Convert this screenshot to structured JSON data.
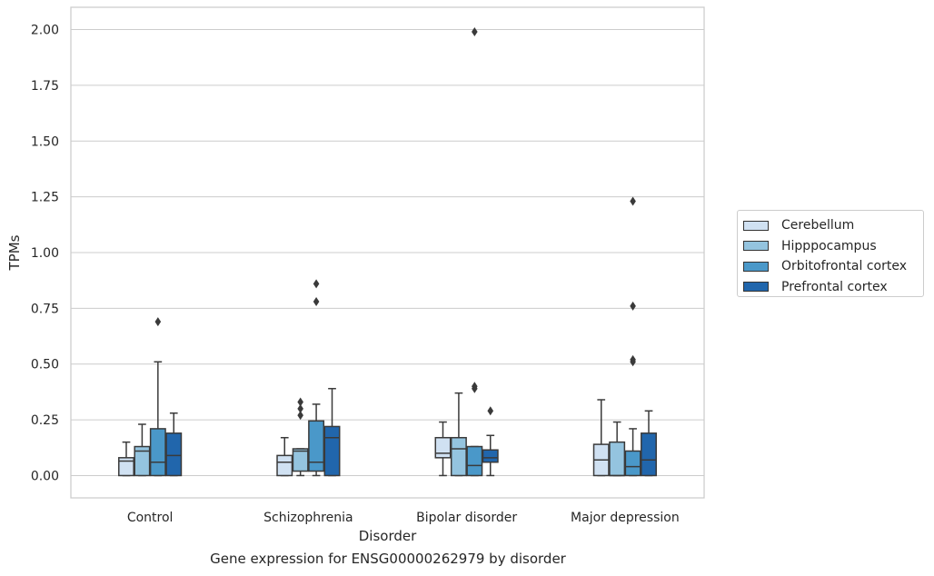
{
  "chart_data": {
    "type": "box",
    "xlabel": "Disorder",
    "ylabel": "TPMs",
    "caption": "Gene expression for ENSG00000262979 by disorder",
    "categories": [
      "Control",
      "Schizophrenia",
      "Bipolar disorder",
      "Major depression"
    ],
    "ylim": [
      -0.1,
      2.1
    ],
    "yticks": [
      0.0,
      0.25,
      0.5,
      0.75,
      1.0,
      1.25,
      1.5,
      1.75,
      2.0
    ],
    "ytick_labels": [
      "0.00",
      "0.25",
      "0.50",
      "0.75",
      "1.00",
      "1.25",
      "1.50",
      "1.75",
      "2.00"
    ],
    "grid": true,
    "legend_position": "right",
    "series": [
      {
        "name": "Cerebellum",
        "color": "#d0e1f2",
        "boxes": [
          {
            "whislo": 0.0,
            "q1": 0.0,
            "med": 0.065,
            "q3": 0.08,
            "whishi": 0.15,
            "fliers": []
          },
          {
            "whislo": 0.0,
            "q1": 0.0,
            "med": 0.06,
            "q3": 0.09,
            "whishi": 0.17,
            "fliers": []
          },
          {
            "whislo": 0.0,
            "q1": 0.08,
            "med": 0.1,
            "q3": 0.17,
            "whishi": 0.24,
            "fliers": []
          },
          {
            "whislo": 0.0,
            "q1": 0.0,
            "med": 0.07,
            "q3": 0.14,
            "whishi": 0.34,
            "fliers": []
          }
        ]
      },
      {
        "name": "Hipppocampus",
        "color": "#94c4df",
        "boxes": [
          {
            "whislo": 0.0,
            "q1": 0.0,
            "med": 0.11,
            "q3": 0.13,
            "whishi": 0.23,
            "fliers": []
          },
          {
            "whislo": 0.0,
            "q1": 0.02,
            "med": 0.11,
            "q3": 0.12,
            "whishi": 0.12,
            "fliers": [
              0.27,
              0.3,
              0.33
            ]
          },
          {
            "whislo": 0.0,
            "q1": 0.0,
            "med": 0.12,
            "q3": 0.17,
            "whishi": 0.37,
            "fliers": []
          },
          {
            "whislo": 0.0,
            "q1": 0.0,
            "med": 0.0,
            "q3": 0.15,
            "whishi": 0.24,
            "fliers": []
          }
        ]
      },
      {
        "name": "Orbitofrontal cortex",
        "color": "#4a98c9",
        "boxes": [
          {
            "whislo": 0.0,
            "q1": 0.0,
            "med": 0.06,
            "q3": 0.21,
            "whishi": 0.51,
            "fliers": [
              0.69
            ]
          },
          {
            "whislo": 0.0,
            "q1": 0.02,
            "med": 0.06,
            "q3": 0.245,
            "whishi": 0.32,
            "fliers": [
              0.78,
              0.86
            ]
          },
          {
            "whislo": 0.0,
            "q1": 0.0,
            "med": 0.045,
            "q3": 0.13,
            "whishi": 0.13,
            "fliers": [
              0.39,
              0.4,
              1.99
            ]
          },
          {
            "whislo": 0.0,
            "q1": 0.0,
            "med": 0.04,
            "q3": 0.11,
            "whishi": 0.21,
            "fliers": [
              0.51,
              0.52,
              0.76,
              1.23
            ]
          }
        ]
      },
      {
        "name": "Prefrontal cortex",
        "color": "#2166ac",
        "boxes": [
          {
            "whislo": 0.0,
            "q1": 0.0,
            "med": 0.09,
            "q3": 0.19,
            "whishi": 0.28,
            "fliers": []
          },
          {
            "whislo": 0.0,
            "q1": 0.0,
            "med": 0.17,
            "q3": 0.22,
            "whishi": 0.39,
            "fliers": []
          },
          {
            "whislo": 0.0,
            "q1": 0.06,
            "med": 0.08,
            "q3": 0.115,
            "whishi": 0.18,
            "fliers": [
              0.29
            ]
          },
          {
            "whislo": 0.0,
            "q1": 0.0,
            "med": 0.07,
            "q3": 0.19,
            "whishi": 0.29,
            "fliers": []
          }
        ]
      }
    ]
  }
}
